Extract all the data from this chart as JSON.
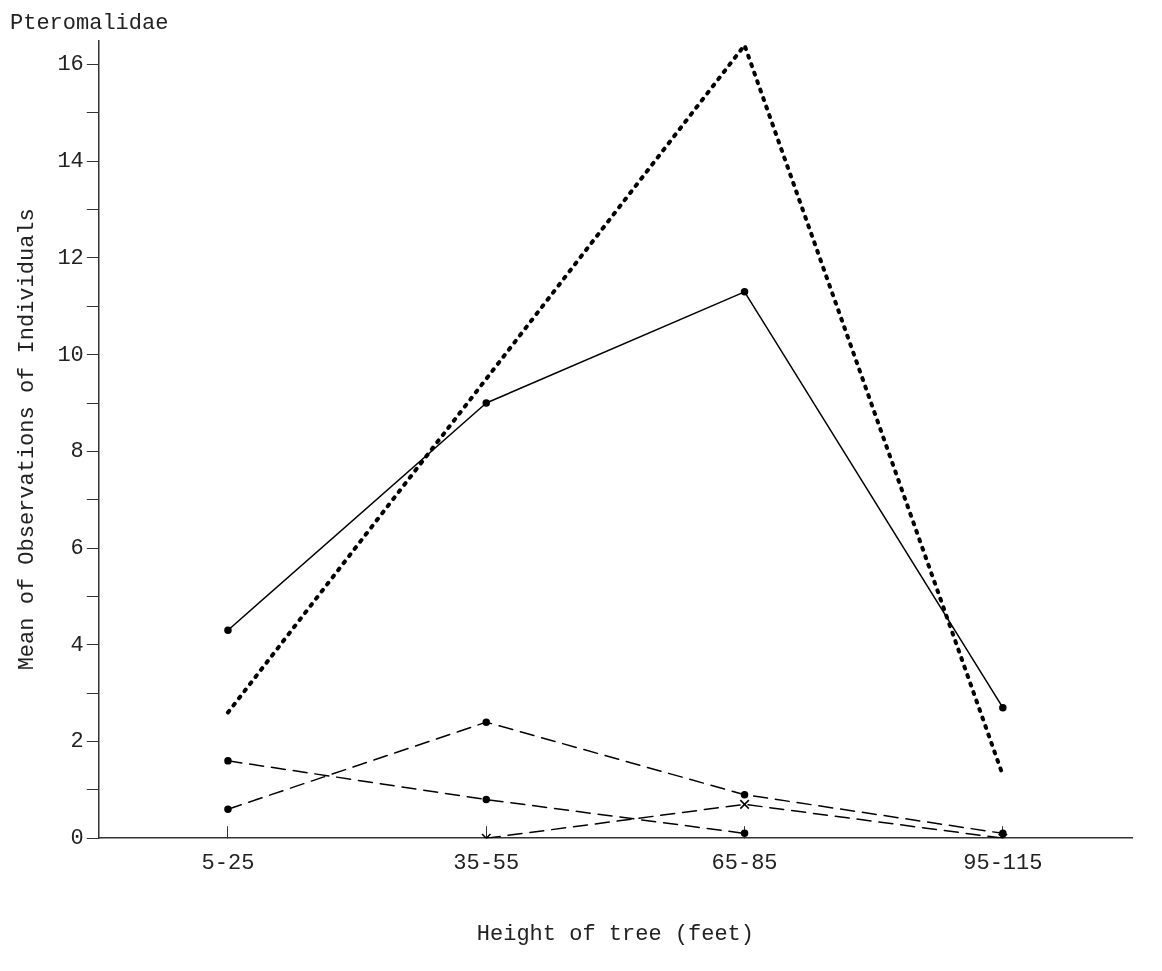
{
  "chart_data": {
    "type": "line",
    "title": "Pteromalidae",
    "xlabel": "Height of tree (feet)",
    "ylabel": "Mean of Observations of Individuals",
    "categories": [
      "5-25",
      "35-55",
      "65-85",
      "95-115"
    ],
    "series": [
      {
        "color": "#000000",
        "values": [
          4.3,
          9.0,
          11.3,
          2.7
        ],
        "line_style": "solid",
        "marker": "circle"
      },
      {
        "color": "#000000",
        "values": [
          2.6,
          9.5,
          16.4,
          1.3
        ],
        "line_style": "dotted",
        "marker": "none"
      },
      {
        "color": "#000000",
        "values": [
          0.6,
          2.4,
          0.9,
          0.1
        ],
        "line_style": "dashed",
        "marker": "circle"
      },
      {
        "color": "#000000",
        "values": [
          1.6,
          0.8,
          0.1,
          null
        ],
        "line_style": "dashed",
        "marker": "circle"
      },
      {
        "color": "#000000",
        "values": [
          null,
          0.0,
          0.7,
          0.0
        ],
        "line_style": "dashed",
        "marker": "cross"
      }
    ],
    "ylim": [
      0,
      16.5
    ],
    "yticks": [
      0,
      {
        "value": 1,
        "label": null
      },
      2,
      {
        "value": 3,
        "label": null
      },
      4,
      {
        "value": 5,
        "label": null
      },
      6,
      {
        "value": 7,
        "label": null
      },
      8,
      {
        "value": 9,
        "label": null
      },
      10,
      {
        "value": 11,
        "label": null
      },
      12,
      {
        "value": 13,
        "label": null
      },
      14,
      {
        "value": 15,
        "label": null
      },
      16
    ],
    "grid": false,
    "legend": false
  }
}
